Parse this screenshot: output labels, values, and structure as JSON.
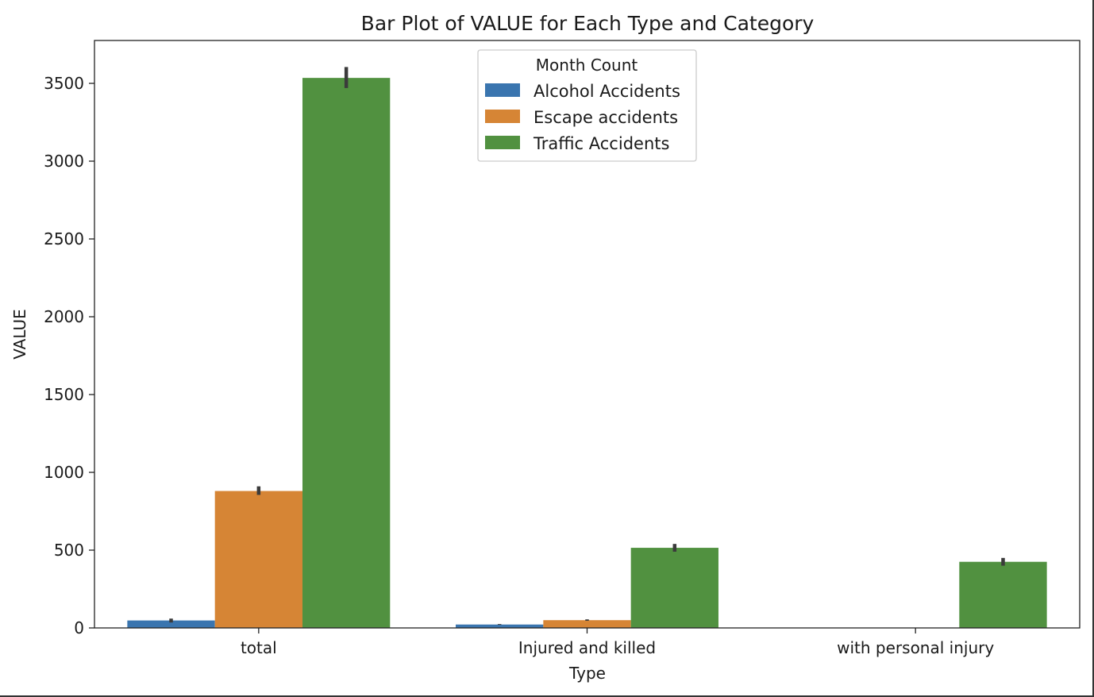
{
  "chart_data": {
    "type": "bar",
    "title": "Bar Plot of VALUE for Each Type and Category",
    "xlabel": "Type",
    "ylabel": "VALUE",
    "categories": [
      "total",
      "Injured and killed",
      "with personal injury"
    ],
    "ylim": [
      0,
      3750
    ],
    "yticks": [
      0,
      500,
      1000,
      1500,
      2000,
      2500,
      3000,
      3500
    ],
    "legend": {
      "title": "Month Count",
      "position": "upper center"
    },
    "series": [
      {
        "name": "Alcohol Accidents",
        "color": "#3a75af",
        "values": [
          48,
          22,
          null
        ],
        "err": [
          [
            35,
            60
          ],
          [
            20,
            25
          ],
          null
        ]
      },
      {
        "name": "Escape accidents",
        "color": "#d68535",
        "values": [
          880,
          50,
          null
        ],
        "err": [
          [
            855,
            910
          ],
          [
            46,
            55
          ],
          null
        ]
      },
      {
        "name": "Traffic Accidents",
        "color": "#519140",
        "values": [
          3535,
          515,
          425
        ],
        "err": [
          [
            3470,
            3605
          ],
          [
            490,
            540
          ],
          [
            400,
            450
          ]
        ]
      }
    ],
    "grid": false
  }
}
